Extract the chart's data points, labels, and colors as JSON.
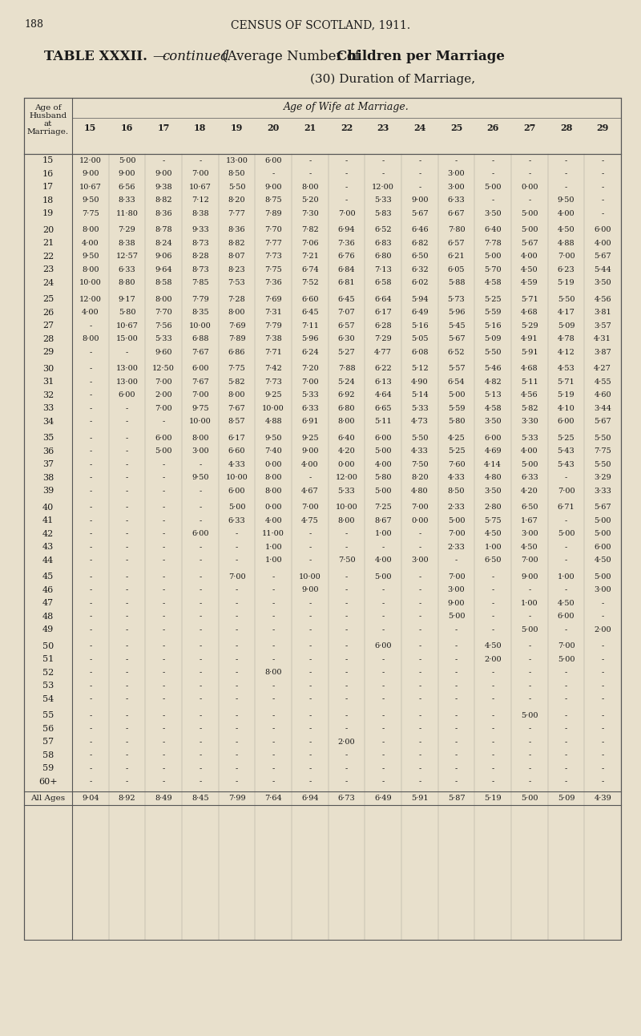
{
  "page_num": "188",
  "header": "CENSUS OF SCOTLAND, 1911.",
  "title_plain": "TABLE XXXII.",
  "title_italic": "—continued",
  "title_rest": " (Average Number of ",
  "title_bold": "Children per Marriage",
  "subtitle": "(30) Duration of Marriage,",
  "col_header": "Age of Wife at Marriage.",
  "row_header_lines": [
    "Age of",
    "Husband",
    "at",
    "Marriage."
  ],
  "col_labels": [
    "15",
    "16",
    "17",
    "18",
    "19",
    "20",
    "21",
    "22",
    "23",
    "24",
    "25",
    "26",
    "27",
    "28",
    "29"
  ],
  "row_labels": [
    "15",
    "16",
    "17",
    "18",
    "19",
    "",
    "20",
    "21",
    "22",
    "23",
    "24",
    "",
    "25",
    "26",
    "27",
    "28",
    "29",
    "",
    "30",
    "31",
    "32",
    "33",
    "34",
    "",
    "35",
    "36",
    "37",
    "38",
    "39",
    "",
    "40",
    "41",
    "42",
    "43",
    "44",
    "",
    "45",
    "46",
    "47",
    "48",
    "49",
    "",
    "50",
    "51",
    "52",
    "53",
    "54",
    "",
    "55",
    "56",
    "57",
    "58",
    "59",
    "60+",
    "",
    "All Ages"
  ],
  "rows": {
    "15": [
      "12·00",
      "5·00",
      "-",
      "-",
      "13·00",
      "6·00",
      "-",
      "-",
      "-",
      "-",
      "-",
      "-",
      "-",
      "-",
      "-"
    ],
    "16": [
      "9·00",
      "9·00",
      "9·00",
      "7·00",
      "8·50",
      "-",
      "-",
      "-",
      "-",
      "-",
      "3·00",
      "-",
      "-",
      "-",
      "-"
    ],
    "17": [
      "10·67",
      "6·56",
      "9·38",
      "10·67",
      "5·50",
      "9·00",
      "8·00",
      "-",
      "12·00",
      "-",
      "3·00",
      "5·00",
      "0·00",
      "-",
      "-"
    ],
    "18": [
      "9·50",
      "8·33",
      "8·82",
      "7·12",
      "8·20",
      "8·75",
      "5·20",
      "-",
      "5·33",
      "9·00",
      "6·33",
      "-",
      "-",
      "9·50",
      "-"
    ],
    "19": [
      "7·75",
      "11·80",
      "8·36",
      "8·38",
      "7·77",
      "7·89",
      "7·30",
      "7·00",
      "5·83",
      "5·67",
      "6·67",
      "3·50",
      "5·00",
      "4·00",
      "-"
    ],
    "20": [
      "8·00",
      "7·29",
      "8·78",
      "9·33",
      "8·36",
      "7·70",
      "7·82",
      "6·94",
      "6·52",
      "6·46",
      "7·80",
      "6·40",
      "5·00",
      "4·50",
      "6·00"
    ],
    "21": [
      "4·00",
      "8·38",
      "8·24",
      "8·73",
      "8·82",
      "7·77",
      "7·06",
      "7·36",
      "6·83",
      "6·82",
      "6·57",
      "7·78",
      "5·67",
      "4·88",
      "4·00"
    ],
    "22": [
      "9·50",
      "12·57",
      "9·06",
      "8·28",
      "8·07",
      "7·73",
      "7·21",
      "6·76",
      "6·80",
      "6·50",
      "6·21",
      "5·00",
      "4·00",
      "7·00",
      "5·67"
    ],
    "23": [
      "8·00",
      "6·33",
      "9·64",
      "8·73",
      "8·23",
      "7·75",
      "6·74",
      "6·84",
      "7·13",
      "6·32",
      "6·05",
      "5·70",
      "4·50",
      "6·23",
      "5·44"
    ],
    "24": [
      "10·00",
      "8·80",
      "8·58",
      "7·85",
      "7·53",
      "7·36",
      "7·52",
      "6·81",
      "6·58",
      "6·02",
      "5·88",
      "4·58",
      "4·59",
      "5·19",
      "3·50"
    ],
    "25": [
      "12·00",
      "9·17",
      "8·00",
      "7·79",
      "7·28",
      "7·69",
      "6·60",
      "6·45",
      "6·64",
      "5·94",
      "5·73",
      "5·25",
      "5·71",
      "5·50",
      "4·56"
    ],
    "26": [
      "4·00",
      "5·80",
      "7·70",
      "8·35",
      "8·00",
      "7·31",
      "6·45",
      "7·07",
      "6·17",
      "6·49",
      "5·96",
      "5·59",
      "4·68",
      "4·17",
      "3·81"
    ],
    "27": [
      "-",
      "10·67",
      "7·56",
      "10·00",
      "7·69",
      "7·79",
      "7·11",
      "6·57",
      "6·28",
      "5·16",
      "5·45",
      "5·16",
      "5·29",
      "5·09",
      "3·57"
    ],
    "28": [
      "8·00",
      "15·00",
      "5·33",
      "6·88",
      "7·89",
      "7·38",
      "5·96",
      "6·30",
      "7·29",
      "5·05",
      "5·67",
      "5·09",
      "4·91",
      "4·78",
      "4·31"
    ],
    "29": [
      "-",
      "-",
      "9·60",
      "7·67",
      "6·86",
      "7·71",
      "6·24",
      "5·27",
      "4·77",
      "6·08",
      "6·52",
      "5·50",
      "5·91",
      "4·12",
      "3·87"
    ],
    "30": [
      "-",
      "13·00",
      "12·50",
      "6·00",
      "7·75",
      "7·42",
      "7·20",
      "7·88",
      "6·22",
      "5·12",
      "5·57",
      "5·46",
      "4·68",
      "4·53",
      "4·27"
    ],
    "31": [
      "-",
      "13·00",
      "7·00",
      "7·67",
      "5·82",
      "7·73",
      "7·00",
      "5·24",
      "6·13",
      "4·90",
      "6·54",
      "4·82",
      "5·11",
      "5·71",
      "4·55"
    ],
    "32": [
      "-",
      "6·00",
      "2·00",
      "7·00",
      "8·00",
      "9·25",
      "5·33",
      "6·92",
      "4·64",
      "5·14",
      "5·00",
      "5·13",
      "4·56",
      "5·19",
      "4·60"
    ],
    "33": [
      "-",
      "-",
      "7·00",
      "9·75",
      "7·67",
      "10·00",
      "6·33",
      "6·80",
      "6·65",
      "5·33",
      "5·59",
      "4·58",
      "5·82",
      "4·10",
      "3·44"
    ],
    "34": [
      "-",
      "-",
      "-",
      "10·00",
      "8·57",
      "4·88",
      "6·91",
      "8·00",
      "5·11",
      "4·73",
      "5·80",
      "3·50",
      "3·30",
      "6·00",
      "5·67"
    ],
    "35": [
      "-",
      "-",
      "6·00",
      "8·00",
      "6·17",
      "9·50",
      "9·25",
      "6·40",
      "6·00",
      "5·50",
      "4·25",
      "6·00",
      "5·33",
      "5·25",
      "5·50"
    ],
    "36": [
      "-",
      "-",
      "5·00",
      "3·00",
      "6·60",
      "7·40",
      "9·00",
      "4·20",
      "5·00",
      "4·33",
      "5·25",
      "4·69",
      "4·00",
      "5·43",
      "7·75"
    ],
    "37": [
      "-",
      "-",
      "-",
      "-",
      "4·33",
      "0·00",
      "4·00",
      "0·00",
      "4·00",
      "7·50",
      "7·60",
      "4·14",
      "5·00",
      "5·43",
      "5·50"
    ],
    "38": [
      "-",
      "-",
      "-",
      "9·50",
      "10·00",
      "8·00",
      "-",
      "12·00",
      "5·80",
      "8·20",
      "4·33",
      "4·80",
      "6·33",
      "-",
      "3·29"
    ],
    "39": [
      "-",
      "-",
      "-",
      "-",
      "6·00",
      "8·00",
      "4·67",
      "5·33",
      "5·00",
      "4·80",
      "8·50",
      "3·50",
      "4·20",
      "7·00",
      "3·33"
    ],
    "40": [
      "-",
      "-",
      "-",
      "-",
      "5·00",
      "0·00",
      "7·00",
      "10·00",
      "7·25",
      "7·00",
      "2·33",
      "2·80",
      "6·50",
      "6·71",
      "5·67"
    ],
    "41": [
      "-",
      "-",
      "-",
      "-",
      "6·33",
      "4·00",
      "4·75",
      "8·00",
      "8·67",
      "0·00",
      "5·00",
      "5·75",
      "1·67",
      "-",
      "5·00"
    ],
    "42": [
      "-",
      "-",
      "-",
      "6·00",
      "-",
      "11·00",
      "-",
      "-",
      "1·00",
      "-",
      "7·00",
      "4·50",
      "3·00",
      "5·00",
      "5·00"
    ],
    "43": [
      "-",
      "-",
      "-",
      "-",
      "-",
      "1·00",
      "-",
      "-",
      "-",
      "-",
      "2·33",
      "1·00",
      "4·50",
      "-",
      "6·00"
    ],
    "44": [
      "-",
      "-",
      "-",
      "-",
      "-",
      "1·00",
      "-",
      "7·50",
      "4·00",
      "3·00",
      "-",
      "6·50",
      "7·00",
      "-",
      "4·50"
    ],
    "45": [
      "-",
      "-",
      "-",
      "-",
      "7·00",
      "-",
      "10·00",
      "-",
      "5·00",
      "-",
      "7·00",
      "-",
      "9·00",
      "1·00",
      "5·00"
    ],
    "46": [
      "-",
      "-",
      "-",
      "-",
      "-",
      "-",
      "9·00",
      "-",
      "-",
      "-",
      "3·00",
      "-",
      "-",
      "-",
      "3·00"
    ],
    "47": [
      "-",
      "-",
      "-",
      "-",
      "-",
      "-",
      "-",
      "-",
      "-",
      "-",
      "9·00",
      "-",
      "1·00",
      "4·50",
      "-"
    ],
    "48": [
      "-",
      "-",
      "-",
      "-",
      "-",
      "-",
      "-",
      "-",
      "-",
      "-",
      "5·00",
      "-",
      "-",
      "6·00",
      "-"
    ],
    "49": [
      "-",
      "-",
      "-",
      "-",
      "-",
      "-",
      "-",
      "-",
      "-",
      "-",
      "-",
      "-",
      "5·00",
      "-",
      "2·00"
    ],
    "50": [
      "-",
      "-",
      "-",
      "-",
      "-",
      "-",
      "-",
      "-",
      "6·00",
      "-",
      "-",
      "4·50",
      "-",
      "7·00",
      "-"
    ],
    "51": [
      "-",
      "-",
      "-",
      "-",
      "-",
      "-",
      "-",
      "-",
      "-",
      "-",
      "-",
      "2·00",
      "-",
      "5·00",
      "-"
    ],
    "52": [
      "-",
      "-",
      "-",
      "-",
      "-",
      "8·00",
      "-",
      "-",
      "-",
      "-",
      "-",
      "-",
      "-",
      "-",
      "-"
    ],
    "53": [
      "-",
      "-",
      "-",
      "-",
      "-",
      "-",
      "-",
      "-",
      "-",
      "-",
      "-",
      "-",
      "-",
      "-",
      "-"
    ],
    "54": [
      "-",
      "-",
      "-",
      "-",
      "-",
      "-",
      "-",
      "-",
      "-",
      "-",
      "-",
      "-",
      "-",
      "-",
      "-"
    ],
    "55": [
      "-",
      "-",
      "-",
      "-",
      "-",
      "-",
      "-",
      "-",
      "-",
      "-",
      "-",
      "-",
      "5·00",
      "-",
      "-"
    ],
    "56": [
      "-",
      "-",
      "-",
      "-",
      "-",
      "-",
      "-",
      "-",
      "-",
      "-",
      "-",
      "-",
      "-",
      "-",
      "-"
    ],
    "57": [
      "-",
      "-",
      "-",
      "-",
      "-",
      "-",
      "-",
      "2·00",
      "-",
      "-",
      "-",
      "-",
      "-",
      "-",
      "-"
    ],
    "58": [
      "-",
      "-",
      "-",
      "-",
      "-",
      "-",
      "-",
      "-",
      "-",
      "-",
      "-",
      "-",
      "-",
      "-",
      "-"
    ],
    "59": [
      "-",
      "-",
      "-",
      "-",
      "-",
      "-",
      "-",
      "-",
      "-",
      "-",
      "-",
      "-",
      "-",
      "-",
      "-"
    ],
    "60+": [
      "-",
      "-",
      "-",
      "-",
      "-",
      "-",
      "-",
      "-",
      "-",
      "-",
      "-",
      "-",
      "-",
      "-",
      "-"
    ],
    "All Ages": [
      "9·04",
      "8·92",
      "8·49",
      "8·45",
      "7·99",
      "7·64",
      "6·94",
      "6·73",
      "6·49",
      "5·91",
      "5·87",
      "5·19",
      "5·00",
      "5·09",
      "4·39"
    ]
  },
  "bg_color": "#e8e0cc",
  "text_color": "#1a1a1a",
  "line_color": "#555555"
}
